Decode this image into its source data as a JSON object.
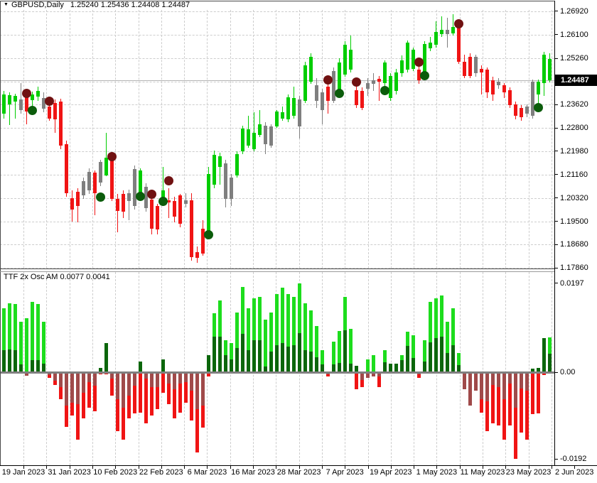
{
  "header": {
    "symbol_text": "GBPUSD,Daily",
    "ohlc_text": "1.25240 1.25436 1.24408 1.24487"
  },
  "indicator": {
    "name": "TTF 2x Osc AM",
    "values": [
      "0.0077",
      "0.0041"
    ],
    "title_text": "TTF 2x Osc AM 0.0077 0.0041"
  },
  "price_axis": {
    "current_price": "1.24487",
    "labels": [
      "1.26920",
      "1.26100",
      "1.25260",
      "1.23620",
      "1.22800",
      "1.21980",
      "1.21160",
      "1.20320",
      "1.19500",
      "1.18680",
      "1.17860"
    ]
  },
  "osc_axis": {
    "labels": [
      "0.0197",
      "0.00",
      "-0.0192"
    ]
  },
  "time_axis": {
    "labels": [
      "19 Jan 2023",
      "31 Jan 2023",
      "10 Feb 2023",
      "22 Feb 2023",
      "6 Mar 2023",
      "16 Mar 2023",
      "28 Mar 2023",
      "7 Apr 2023",
      "19 Apr 2023",
      "1 May 2023",
      "11 May 2023",
      "23 May 2023",
      "2 Jun 2023"
    ]
  },
  "colors": {
    "bull": "#00cd00",
    "bear": "#f01414",
    "neutral": "#7f7f7f",
    "osc_pos": "#1ddd1d",
    "osc_neg": "#f01414",
    "sig_pos": "#0b660b",
    "sig_neg": "#a04a4a",
    "dot_sell": "#701111",
    "dot_buy": "#0b5c0b",
    "grid": "#cdcdcd",
    "bid_line": "#b4b4b4",
    "tag_bg": "#000000",
    "tag_text": "#ffffff"
  },
  "chart_data": {
    "type": "candlestick",
    "symbol": "GBPUSD",
    "timeframe": "Daily",
    "last_ohlc": {
      "open": 1.2524,
      "high": 1.25436,
      "low": 1.24408,
      "close": 1.24487
    },
    "current_price": 1.24487,
    "price_ylim": [
      1.17835,
      1.26995
    ],
    "gridline_prices": [
      1.2692,
      1.261,
      1.2526,
      1.2444,
      1.2362,
      1.228,
      1.2198,
      1.2116,
      1.2032,
      1.195,
      1.1868,
      1.1786
    ],
    "gridline_labels": [
      "1.26920",
      "1.26100",
      "1.25260",
      "",
      "1.23620",
      "1.22800",
      "1.21980",
      "1.21160",
      "1.20320",
      "1.19500",
      "1.18680",
      "1.17860"
    ],
    "time_labels": [
      "19 Jan 2023",
      "31 Jan 2023",
      "10 Feb 2023",
      "22 Feb 2023",
      "6 Mar 2023",
      "16 Mar 2023",
      "28 Mar 2023",
      "7 Apr 2023",
      "19 Apr 2023",
      "1 May 2023",
      "11 May 2023",
      "23 May 2023",
      "2 Jun 2023"
    ],
    "candles": [
      [
        1.23306,
        1.24109,
        1.2313,
        1.23984,
        "g",
        0,
        0
      ],
      [
        1.23632,
        1.24059,
        1.22904,
        1.23959,
        "g",
        0,
        0
      ],
      [
        1.23733,
        1.24008,
        1.2313,
        1.23933,
        "g",
        0,
        0
      ],
      [
        1.23808,
        1.24385,
        1.23306,
        1.23431,
        "n",
        0,
        0
      ],
      [
        1.23933,
        1.24034,
        1.22929,
        1.23381,
        "r",
        -1,
        1.24009
      ],
      [
        1.23783,
        1.24084,
        1.23507,
        1.23984,
        "g",
        1,
        1.23431
      ],
      [
        1.23908,
        1.2426,
        1.23758,
        1.24109,
        "g",
        0,
        0
      ],
      [
        1.23858,
        1.24059,
        1.23356,
        1.23482,
        "n",
        0,
        0
      ],
      [
        1.23557,
        1.23707,
        1.23055,
        1.2313,
        "r",
        -1,
        1.23733
      ],
      [
        1.23682,
        1.23808,
        1.22628,
        1.23105,
        "r",
        0,
        0
      ],
      [
        1.23733,
        1.23833,
        1.22051,
        1.22177,
        "r",
        0,
        0
      ],
      [
        1.22227,
        1.22352,
        1.2037,
        1.20495,
        "r",
        0,
        0
      ],
      [
        1.20319,
        1.20596,
        1.19491,
        1.19918,
        "r",
        0,
        0
      ],
      [
        1.20545,
        1.20671,
        1.19466,
        1.20043,
        "r",
        0,
        0
      ],
      [
        1.20922,
        1.21047,
        1.20294,
        1.2042,
        "n",
        0,
        0
      ],
      [
        1.20596,
        1.21374,
        1.2047,
        1.21249,
        "n",
        0,
        0
      ],
      [
        1.21224,
        1.21298,
        1.19717,
        1.20495,
        "r",
        0,
        0
      ],
      [
        1.20872,
        1.21675,
        1.20746,
        1.216,
        "n",
        1,
        1.20345
      ],
      [
        1.21123,
        1.22628,
        1.21097,
        1.2175,
        "g",
        0,
        0
      ],
      [
        1.21725,
        1.21775,
        1.20219,
        1.20294,
        "r",
        -1,
        1.218
      ],
      [
        1.20294,
        1.2047,
        1.19115,
        1.19868,
        "r",
        0,
        0
      ],
      [
        1.2047,
        1.20596,
        1.19617,
        1.19843,
        "r",
        0,
        0
      ],
      [
        1.20495,
        1.20621,
        1.19541,
        1.20219,
        "n",
        0,
        0
      ],
      [
        1.20043,
        1.21474,
        1.19918,
        1.21348,
        "n",
        0,
        0
      ],
      [
        1.20345,
        1.21374,
        1.20269,
        1.21298,
        "g",
        1,
        1.2037
      ],
      [
        1.20721,
        1.20847,
        1.19843,
        1.19968,
        "n",
        0,
        0
      ],
      [
        1.20269,
        1.20495,
        1.19039,
        1.1924,
        "r",
        -1,
        1.2047
      ],
      [
        1.20043,
        1.20119,
        1.19039,
        1.19215,
        "r",
        0,
        0
      ],
      [
        1.20169,
        1.21424,
        1.20094,
        1.20596,
        "g",
        1,
        1.20219
      ],
      [
        1.20244,
        1.20671,
        1.19617,
        1.20169,
        "r",
        -1,
        1.20922
      ],
      [
        1.20219,
        1.2037,
        1.19466,
        1.19667,
        "r",
        0,
        0
      ],
      [
        1.2042,
        1.2047,
        1.1929,
        1.19416,
        "r",
        0,
        0
      ],
      [
        1.20244,
        1.20495,
        1.19993,
        1.20119,
        "n",
        0,
        0
      ],
      [
        1.20244,
        1.20495,
        1.1811,
        1.18236,
        "r",
        0,
        0
      ],
      [
        1.18412,
        1.18612,
        1.18035,
        1.18211,
        "r",
        0,
        0
      ],
      [
        1.1924,
        1.19541,
        1.18286,
        1.18361,
        "r",
        0,
        0
      ],
      [
        1.19039,
        1.21424,
        1.18913,
        1.21173,
        "g",
        1,
        1.19039
      ],
      [
        1.20796,
        1.22001,
        1.20671,
        1.21851,
        "g",
        0,
        0
      ],
      [
        1.21424,
        1.21926,
        1.20796,
        1.218,
        "g",
        0,
        0
      ],
      [
        1.21549,
        1.21675,
        1.19993,
        1.20294,
        "n",
        0,
        0
      ],
      [
        1.20294,
        1.21173,
        1.20043,
        1.21047,
        "n",
        0,
        0
      ],
      [
        1.21123,
        1.21976,
        1.21047,
        1.21876,
        "g",
        0,
        0
      ],
      [
        1.21976,
        1.22879,
        1.21876,
        1.22779,
        "g",
        0,
        0
      ],
      [
        1.22177,
        1.23231,
        1.22101,
        1.22754,
        "g",
        0,
        0
      ],
      [
        1.22051,
        1.23356,
        1.21976,
        1.22628,
        "g",
        0,
        0
      ],
      [
        1.22553,
        1.23431,
        1.22478,
        1.22929,
        "g",
        0,
        0
      ],
      [
        1.22879,
        1.23005,
        1.21876,
        1.22227,
        "n",
        0,
        0
      ],
      [
        1.22177,
        1.22929,
        1.22101,
        1.22854,
        "n",
        0,
        0
      ],
      [
        1.22854,
        1.23431,
        1.22804,
        1.23381,
        "g",
        0,
        0
      ],
      [
        1.2313,
        1.23557,
        1.23055,
        1.23356,
        "g",
        0,
        0
      ],
      [
        1.23105,
        1.23984,
        1.23005,
        1.23883,
        "g",
        0,
        0
      ],
      [
        1.23231,
        1.2426,
        1.2313,
        1.23858,
        "g",
        0,
        0
      ],
      [
        1.23808,
        1.23933,
        1.22427,
        1.22854,
        "n",
        0,
        0
      ],
      [
        1.23758,
        1.25138,
        1.23682,
        1.25013,
        "g",
        0,
        0
      ],
      [
        1.24436,
        1.25439,
        1.2436,
        1.25314,
        "g",
        0,
        0
      ],
      [
        1.2431,
        1.24561,
        1.23507,
        1.23758,
        "n",
        0,
        0
      ],
      [
        1.24059,
        1.24184,
        1.22929,
        1.23431,
        "n",
        0,
        0
      ],
      [
        1.2426,
        1.2436,
        1.23306,
        1.23758,
        "r",
        -1,
        1.24486
      ],
      [
        1.23758,
        1.24937,
        1.23682,
        1.24812,
        "n",
        0,
        0
      ],
      [
        1.24134,
        1.25263,
        1.23984,
        1.25113,
        "g",
        1,
        1.24009
      ],
      [
        1.24686,
        1.25866,
        1.24611,
        1.25741,
        "g",
        0,
        0
      ],
      [
        1.24862,
        1.26067,
        1.24762,
        1.25565,
        "g",
        0,
        0
      ],
      [
        1.24134,
        1.2431,
        1.23507,
        1.23607,
        "r",
        -1,
        1.24435
      ],
      [
        1.24109,
        1.24235,
        1.23431,
        1.23507,
        "r",
        0,
        0
      ],
      [
        1.24385,
        1.24561,
        1.23933,
        1.24184,
        "n",
        0,
        0
      ],
      [
        1.2436,
        1.24737,
        1.24109,
        1.24486,
        "n",
        0,
        0
      ],
      [
        1.24536,
        1.24636,
        1.23758,
        1.24436,
        "r",
        0,
        0
      ],
      [
        1.24385,
        1.25188,
        1.2426,
        1.25113,
        "g",
        1,
        1.24109
      ],
      [
        1.23858,
        1.24737,
        1.23758,
        1.24636,
        "g",
        0,
        0
      ],
      [
        1.24109,
        1.24887,
        1.23984,
        1.24761,
        "g",
        0,
        0
      ],
      [
        1.24737,
        1.25364,
        1.24611,
        1.25188,
        "g",
        0,
        0
      ],
      [
        1.24862,
        1.25891,
        1.24762,
        1.25816,
        "g",
        0,
        0
      ],
      [
        1.24887,
        1.2564,
        1.24812,
        1.25565,
        "g",
        0,
        0
      ],
      [
        1.24862,
        1.25013,
        1.2436,
        1.24486,
        "r",
        -1,
        1.25113
      ],
      [
        1.24737,
        1.25866,
        1.24636,
        1.25766,
        "g",
        1,
        1.24636
      ],
      [
        1.25615,
        1.26017,
        1.25515,
        1.25816,
        "g",
        0,
        0
      ],
      [
        1.25741,
        1.26569,
        1.2564,
        1.26192,
        "g",
        0,
        0
      ],
      [
        1.26117,
        1.26744,
        1.26017,
        1.26268,
        "g",
        0,
        0
      ],
      [
        1.26268,
        1.26694,
        1.2564,
        1.26117,
        "n",
        0,
        0
      ],
      [
        1.26142,
        1.2682,
        1.26067,
        1.26368,
        "g",
        0,
        0
      ],
      [
        1.26368,
        1.26443,
        1.25063,
        1.25138,
        "r",
        -1,
        1.26493
      ],
      [
        1.25138,
        1.25389,
        1.24561,
        1.24636,
        "r",
        0,
        0
      ],
      [
        1.25314,
        1.25439,
        1.24561,
        1.24636,
        "r",
        0,
        0
      ],
      [
        1.24737,
        1.25389,
        1.24611,
        1.25314,
        "n",
        0,
        0
      ],
      [
        1.24887,
        1.25013,
        1.23984,
        1.24762,
        "r",
        0,
        0
      ],
      [
        1.24862,
        1.24937,
        1.23858,
        1.24059,
        "r",
        0,
        0
      ],
      [
        1.24486,
        1.24611,
        1.23758,
        1.23984,
        "r",
        0,
        0
      ],
      [
        1.24436,
        1.24561,
        1.24184,
        1.2431,
        "n",
        0,
        0
      ],
      [
        1.2431,
        1.24385,
        1.23858,
        1.24059,
        "r",
        0,
        0
      ],
      [
        1.24134,
        1.24235,
        1.23507,
        1.23607,
        "r",
        0,
        0
      ],
      [
        1.23632,
        1.23733,
        1.23105,
        1.23231,
        "r",
        0,
        0
      ],
      [
        1.23507,
        1.23607,
        1.23055,
        1.2318,
        "r",
        0,
        0
      ],
      [
        1.23557,
        1.23632,
        1.2318,
        1.23306,
        "n",
        0,
        0
      ],
      [
        1.23231,
        1.24511,
        1.2313,
        1.24436,
        "n",
        0,
        0
      ],
      [
        1.23984,
        1.24511,
        1.23557,
        1.24436,
        "g",
        1,
        1.23507
      ],
      [
        1.24385,
        1.25489,
        1.23933,
        1.25389,
        "g",
        0,
        0
      ],
      [
        1.2524,
        1.25436,
        1.24408,
        1.24487,
        "g",
        0,
        0
      ]
    ],
    "oscillator": {
      "name": "TTF 2x Osc AM",
      "last_values": [
        0.0077,
        0.0041
      ],
      "ylim": [
        -0.02056,
        0.0223
      ],
      "axis_labels": [
        {
          "v": 0.0197,
          "t": "0.0197"
        },
        {
          "v": 0,
          "t": "0.00"
        },
        {
          "v": -0.0192,
          "t": "-0.0192"
        }
      ],
      "main": [
        0.0141,
        0.0153,
        0.015,
        0.0112,
        0.0119,
        0.0155,
        0.015,
        0.0112,
        -0.0012,
        -0.0028,
        -0.006,
        -0.0121,
        -0.0096,
        -0.0149,
        -0.0102,
        -0.0079,
        -0.0087,
        -0.0005,
        -0.0005,
        -0.0051,
        -0.013,
        -0.0149,
        -0.0102,
        -0.0091,
        -0.009,
        -0.0113,
        -0.0095,
        -0.0082,
        -0.0045,
        -0.0071,
        -0.0102,
        -0.009,
        -0.0067,
        -0.0107,
        -0.0177,
        -0.0123,
        -0.0009,
        0.013,
        0.0158,
        0.0071,
        0.0065,
        0.0132,
        0.0188,
        0.0141,
        0.0164,
        0.0167,
        0.0116,
        0.0132,
        0.0172,
        0.0187,
        0.0172,
        0.0167,
        0.0197,
        0.0152,
        0.0136,
        0.0102,
        0.0048,
        -0.0009,
        0.0068,
        0.0091,
        0.0166,
        0.0096,
        -0.0037,
        -0.0033,
        0.0029,
        0.0037,
        -0.0033,
        0.0048,
        0.0008,
        0.0008,
        0.0037,
        0.009,
        0.0081,
        -0.0012,
        0.0071,
        0.0156,
        0.0164,
        0.017,
        0.0112,
        0.0142,
        0.0043,
        -0.002,
        -0.004,
        -0.0025,
        -0.009,
        -0.0131,
        -0.0113,
        -0.0118,
        -0.0149,
        -0.0118,
        -0.0192,
        -0.0133,
        -0.0149,
        -0.0092,
        -0.0091,
        -0.0007,
        0.0077
      ],
      "signal": [
        0.0048,
        0.005,
        0.0048,
        0.0017,
        -0.0008,
        0.0026,
        0.0026,
        0.0019,
        -0.0006,
        -0.0019,
        -0.0033,
        -0.0074,
        -0.0067,
        -0.0071,
        -0.0045,
        -0.0022,
        -0.0029,
        0.0009,
        0.0064,
        -0.0014,
        -0.006,
        -0.0079,
        -0.0051,
        -0.0029,
        0.0023,
        -0.0014,
        -0.0033,
        -0.0033,
        0.0029,
        -0.0025,
        -0.0037,
        -0.0025,
        -0.0022,
        -0.004,
        -0.0082,
        -0.0074,
        0.0037,
        0.0079,
        0.0079,
        0.0037,
        0.0028,
        0.0054,
        0.0085,
        0.0048,
        0.007,
        0.007,
        0.0012,
        0.0046,
        0.0059,
        0.0064,
        0.0056,
        0.0059,
        0.0087,
        0.0048,
        0.0046,
        0.0033,
        0.0017,
        -0.0004,
        0.0017,
        0.002,
        0.0093,
        0.0019,
        0.0014,
        -0.0017,
        -0.0012,
        -0.0009,
        -0.001,
        0.0022,
        0.0019,
        0.0019,
        0.0026,
        0.0058,
        0.0032,
        -0.0005,
        0.0024,
        0.0066,
        0.0076,
        0.0079,
        0.0042,
        0.0059,
        0.0015,
        -0.0037,
        -0.0074,
        -0.004,
        -0.006,
        -0.0064,
        -0.0028,
        -0.0033,
        -0.0059,
        -0.0025,
        -0.0079,
        -0.0036,
        -0.004,
        0.0008,
        0.0009,
        0.0075,
        0.0041
      ]
    }
  }
}
